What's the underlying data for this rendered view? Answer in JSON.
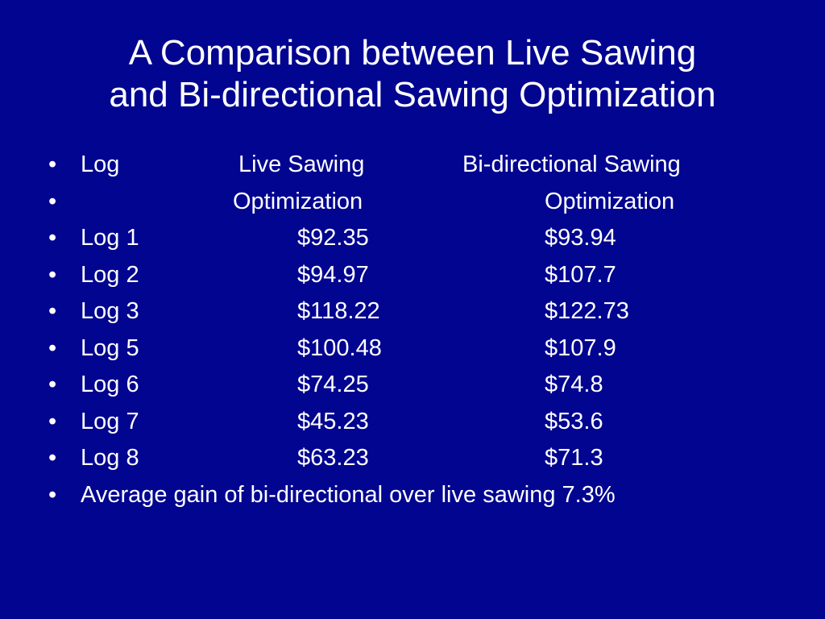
{
  "slide": {
    "title_line1": "A Comparison between Live Sawing",
    "title_line2": "and Bi-directional Sawing Optimization",
    "bullet_char": "•",
    "header": {
      "log": "Log",
      "live": "Live Sawing",
      "bi": "Bi-directional Sawing"
    },
    "subheader": {
      "live": "Optimization",
      "bi": "Optimization"
    },
    "rows": [
      {
        "log": "Log 1",
        "live": "$92.35",
        "bi": "$93.94"
      },
      {
        "log": "Log 2",
        "live": "$94.97",
        "bi": "$107.7"
      },
      {
        "log": "Log 3",
        "live": "$118.22",
        "bi": "$122.73"
      },
      {
        "log": "Log 5",
        "live": "$100.48",
        "bi": "$107.9"
      },
      {
        "log": "Log 6",
        "live": "$74.25",
        "bi": "$74.8"
      },
      {
        "log": "Log 7",
        "live": "$45.23",
        "bi": "$53.6"
      },
      {
        "log": "Log 8",
        "live": "$63.23",
        "bi": "$71.3"
      }
    ],
    "summary": "Average gain of bi-directional over live sawing 7.3%"
  }
}
